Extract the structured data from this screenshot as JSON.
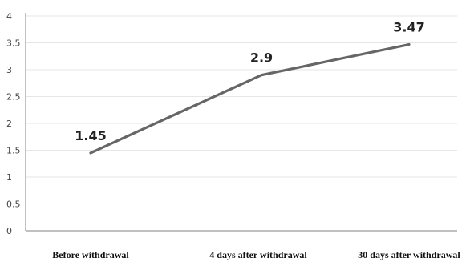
{
  "chart_data": {
    "type": "line",
    "title": "",
    "xlabel": "",
    "ylabel": "",
    "categories": [
      "Before withdrawal",
      "4 days after withdrawal",
      "30 days after withdrawal"
    ],
    "series": [
      {
        "values": [
          1.45,
          2.9,
          3.47
        ],
        "data_labels": [
          "1.45",
          "2.9",
          "3.47"
        ]
      }
    ],
    "ylim": [
      0,
      4
    ],
    "yticks": [
      0,
      0.5,
      1,
      1.5,
      2,
      2.5,
      3,
      3.5,
      4
    ],
    "ytick_labels": [
      "0",
      "0.5",
      "1",
      "1.5",
      "2",
      "2.5",
      "3",
      "3.5",
      "4"
    ],
    "grid": true,
    "legend": "none",
    "colors": {
      "line": "#666666",
      "grid": "#e6e6e6",
      "axis": "#9a9a9a"
    }
  }
}
